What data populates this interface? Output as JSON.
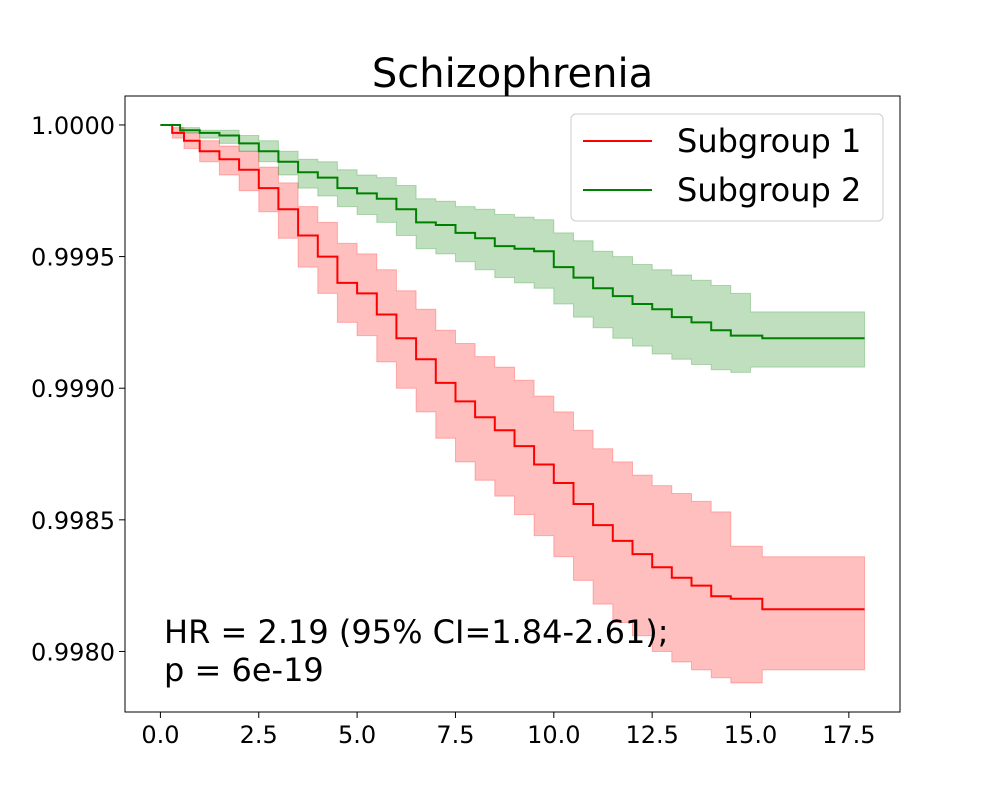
{
  "chart_data": {
    "type": "line",
    "title": "Schizophrenia",
    "xlabel": "",
    "ylabel": "",
    "xlim": [
      -0.9,
      18.8
    ],
    "ylim": [
      0.99777,
      1.00011
    ],
    "xticks": [
      0.0,
      2.5,
      5.0,
      7.5,
      10.0,
      12.5,
      15.0,
      17.5
    ],
    "xtick_labels": [
      "0.0",
      "2.5",
      "5.0",
      "7.5",
      "10.0",
      "12.5",
      "15.0",
      "17.5"
    ],
    "yticks": [
      0.998,
      0.9985,
      0.999,
      0.9995,
      1.0
    ],
    "ytick_labels": [
      "0.9980",
      "0.9985",
      "0.9990",
      "0.9995",
      "1.0000"
    ],
    "grid": false,
    "legend_position": "upper right",
    "annotation_lines": [
      "HR = 2.19 (95% CI=1.84-2.61);",
      "p = 6e-19"
    ],
    "series": [
      {
        "name": "Subgroup 1",
        "color": "#ff0000",
        "ci_color": "#ff0000",
        "x": [
          0.0,
          0.3,
          0.6,
          1.0,
          1.5,
          2.0,
          2.5,
          3.0,
          3.5,
          4.0,
          4.5,
          5.0,
          5.5,
          6.0,
          6.5,
          7.0,
          7.5,
          8.0,
          8.5,
          9.0,
          9.5,
          10.0,
          10.5,
          11.0,
          11.5,
          12.0,
          12.5,
          13.0,
          13.5,
          14.0,
          14.5,
          15.0,
          15.3,
          17.9
        ],
        "y": [
          1.0,
          0.99997,
          0.99994,
          0.9999,
          0.99987,
          0.99983,
          0.99976,
          0.99968,
          0.99958,
          0.9995,
          0.9994,
          0.99936,
          0.99928,
          0.99919,
          0.99911,
          0.99902,
          0.99895,
          0.99889,
          0.99884,
          0.99878,
          0.99871,
          0.99864,
          0.99856,
          0.99848,
          0.99842,
          0.99837,
          0.99832,
          0.99828,
          0.99825,
          0.99821,
          0.9982,
          0.9982,
          0.99816,
          0.99816
        ],
        "lower": [
          1.0,
          0.99995,
          0.99991,
          0.99986,
          0.99981,
          0.99975,
          0.99967,
          0.99957,
          0.99946,
          0.99936,
          0.99925,
          0.9992,
          0.9991,
          0.999,
          0.99891,
          0.99881,
          0.99872,
          0.99865,
          0.99859,
          0.99852,
          0.99844,
          0.99836,
          0.99827,
          0.99818,
          0.99811,
          0.99806,
          0.998,
          0.99796,
          0.99793,
          0.9979,
          0.99788,
          0.99788,
          0.99793,
          0.99793
        ],
        "upper": [
          1.0,
          0.99999,
          0.99997,
          0.99994,
          0.99992,
          0.9999,
          0.99984,
          0.99978,
          0.99969,
          0.99963,
          0.99955,
          0.99951,
          0.99945,
          0.99937,
          0.9993,
          0.99922,
          0.99917,
          0.99912,
          0.99908,
          0.99903,
          0.99897,
          0.99891,
          0.99884,
          0.99877,
          0.99872,
          0.99867,
          0.99863,
          0.9986,
          0.99857,
          0.99853,
          0.9984,
          0.9984,
          0.99836,
          0.99836
        ]
      },
      {
        "name": "Subgroup 2",
        "color": "#008000",
        "ci_color": "#008000",
        "x": [
          0.0,
          0.5,
          1.0,
          1.5,
          2.0,
          2.5,
          3.0,
          3.5,
          4.0,
          4.5,
          5.0,
          5.5,
          6.0,
          6.5,
          7.0,
          7.5,
          8.0,
          8.5,
          9.0,
          9.5,
          10.0,
          10.5,
          11.0,
          11.5,
          12.0,
          12.5,
          13.0,
          13.5,
          14.0,
          14.5,
          15.0,
          15.3,
          17.9
        ],
        "y": [
          1.0,
          0.99998,
          0.99997,
          0.99996,
          0.99993,
          0.9999,
          0.99986,
          0.99982,
          0.9998,
          0.99976,
          0.99974,
          0.99972,
          0.99968,
          0.99963,
          0.99962,
          0.99959,
          0.99957,
          0.99954,
          0.99953,
          0.99952,
          0.99946,
          0.99942,
          0.99938,
          0.99935,
          0.99932,
          0.9993,
          0.99927,
          0.99925,
          0.99922,
          0.9992,
          0.9992,
          0.99919,
          0.99919
        ],
        "lower": [
          1.0,
          0.99997,
          0.99995,
          0.99993,
          0.9999,
          0.99986,
          0.99981,
          0.99976,
          0.99973,
          0.99969,
          0.99966,
          0.99963,
          0.99958,
          0.99953,
          0.99951,
          0.99948,
          0.99945,
          0.99942,
          0.9994,
          0.99938,
          0.99932,
          0.99927,
          0.99923,
          0.99919,
          0.99916,
          0.99913,
          0.99911,
          0.99909,
          0.99907,
          0.99906,
          0.99908,
          0.99908,
          0.99908
        ],
        "upper": [
          1.0,
          0.99999,
          0.99998,
          0.99998,
          0.99996,
          0.99994,
          0.9999,
          0.99987,
          0.99986,
          0.99983,
          0.99981,
          0.9998,
          0.99977,
          0.99972,
          0.99971,
          0.99969,
          0.99968,
          0.99966,
          0.99965,
          0.99964,
          0.99959,
          0.99956,
          0.99952,
          0.9995,
          0.99947,
          0.99945,
          0.99943,
          0.99941,
          0.99939,
          0.99936,
          0.99929,
          0.99929,
          0.99929
        ]
      }
    ]
  }
}
